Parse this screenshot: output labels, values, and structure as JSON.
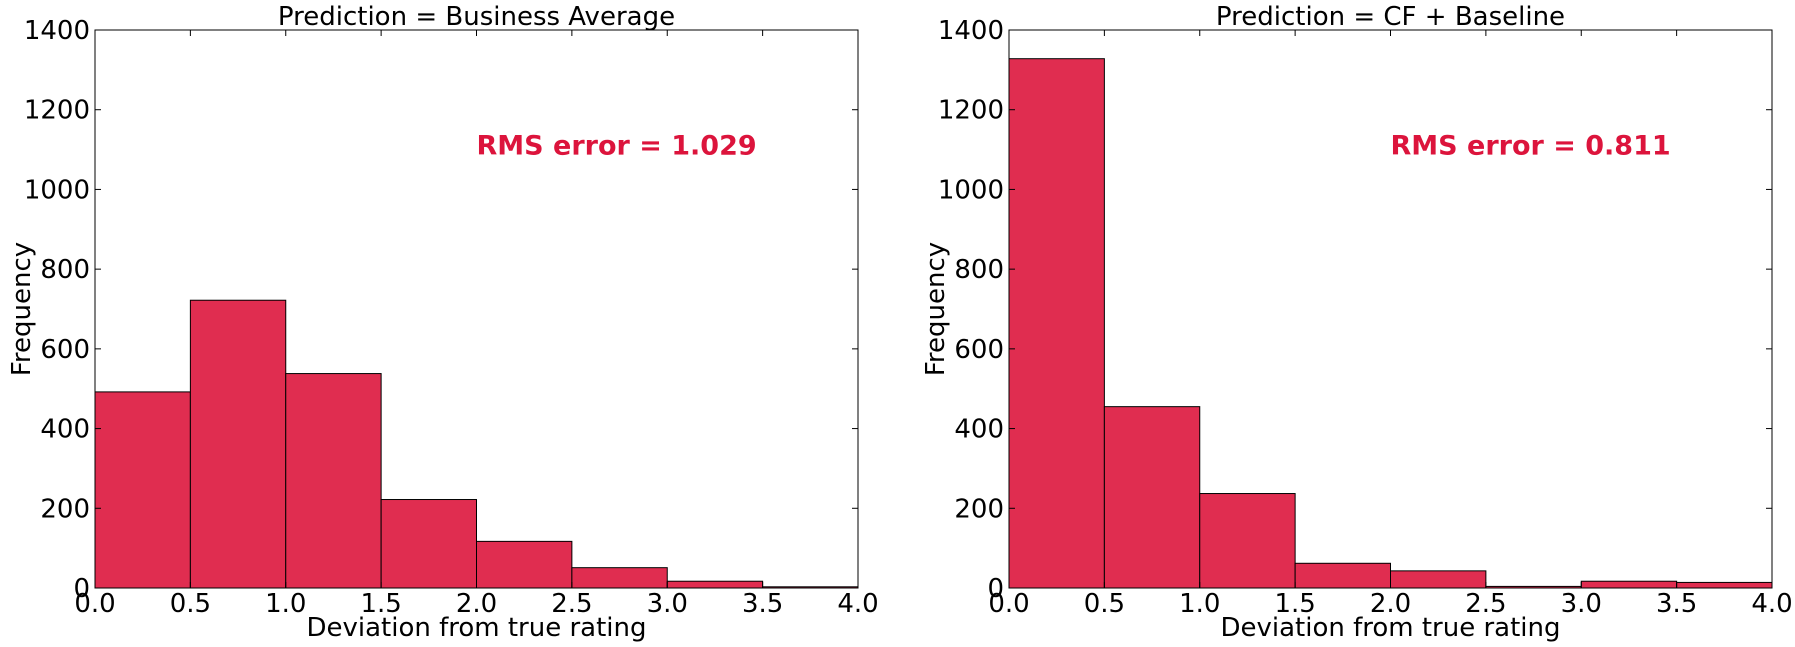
{
  "bar_color": "#e02d50",
  "annotation_color": "#dc143c",
  "chart_data": [
    {
      "type": "bar",
      "title": "Prediction = Business Average",
      "xlabel": "Deviation from true rating",
      "ylabel": "Frequency",
      "xlim": [
        0.0,
        4.0
      ],
      "ylim": [
        0,
        1400
      ],
      "bin_edges": [
        0.0,
        0.5,
        1.0,
        1.5,
        2.0,
        2.5,
        3.0,
        3.5,
        4.0
      ],
      "values": [
        492,
        722,
        538,
        222,
        117,
        51,
        17,
        3
      ],
      "x_ticks": [
        "0.0",
        "0.5",
        "1.0",
        "1.5",
        "2.0",
        "2.5",
        "3.0",
        "3.5",
        "4.0"
      ],
      "y_ticks": [
        "0",
        "200",
        "400",
        "600",
        "800",
        "1000",
        "1200",
        "1400"
      ],
      "annotation": "RMS error = 1.029",
      "annotation_pos": [
        2.0,
        1110
      ]
    },
    {
      "type": "bar",
      "title": "Prediction = CF + Baseline",
      "xlabel": "Deviation from true rating",
      "ylabel": "Frequency",
      "xlim": [
        0.0,
        4.0
      ],
      "ylim": [
        0,
        1400
      ],
      "bin_edges": [
        0.0,
        0.5,
        1.0,
        1.5,
        2.0,
        2.5,
        3.0,
        3.5,
        4.0
      ],
      "values": [
        1328,
        455,
        237,
        62,
        43,
        4,
        17,
        14
      ],
      "x_ticks": [
        "0.0",
        "0.5",
        "1.0",
        "1.5",
        "2.0",
        "2.5",
        "3.0",
        "3.5",
        "4.0"
      ],
      "y_ticks": [
        "0",
        "200",
        "400",
        "600",
        "800",
        "1000",
        "1200",
        "1400"
      ],
      "annotation": "RMS error = 0.811",
      "annotation_pos": [
        2.0,
        1110
      ]
    }
  ]
}
